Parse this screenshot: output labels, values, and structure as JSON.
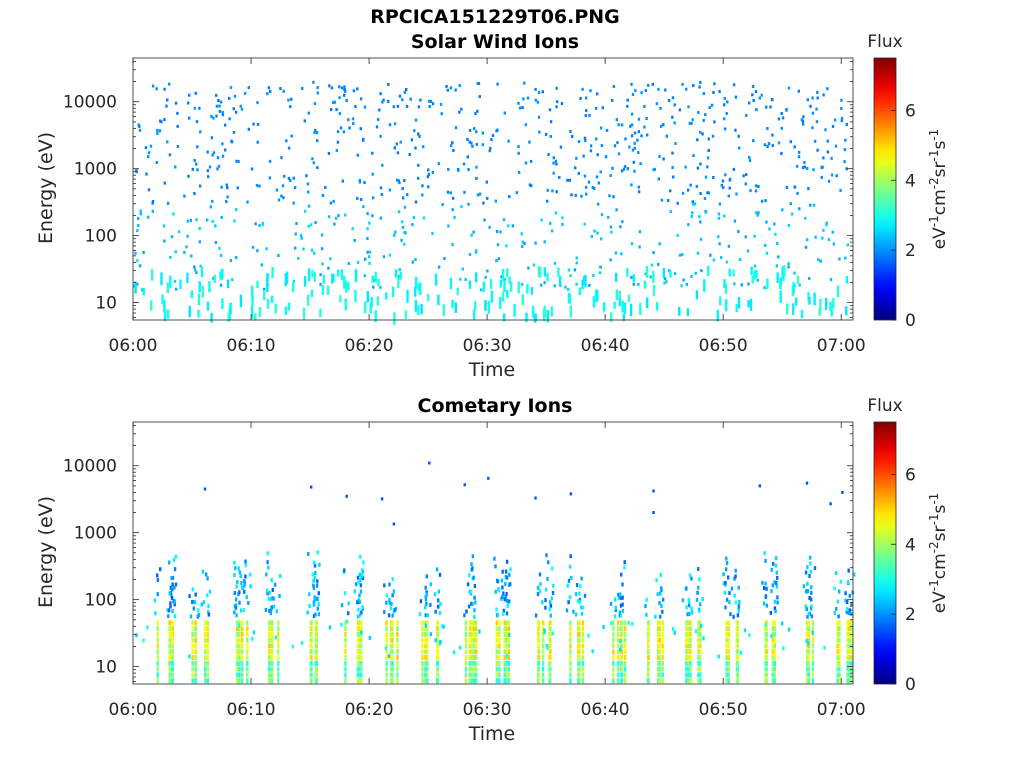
{
  "figure_title": "RPCICA151229T06.PNG",
  "chart_data": [
    {
      "type": "heatmap",
      "title": "Solar Wind Ions",
      "xlabel": "Time",
      "ylabel": "Energy (eV)",
      "x_ticks": [
        "06:00",
        "06:10",
        "06:20",
        "06:30",
        "06:40",
        "06:50",
        "07:00"
      ],
      "xlim": [
        "06:00",
        "07:01"
      ],
      "y_ticks": [
        "10",
        "100",
        "1000",
        "10000"
      ],
      "ylim": [
        5.5,
        45000
      ],
      "y_scale": "log",
      "colorbar": {
        "label": "Flux",
        "unit": "eV-1cm-2sr-1s-1",
        "ticks": [
          "0",
          "2",
          "4",
          "6"
        ],
        "range": [
          0,
          7.5
        ],
        "colormap": "jet"
      },
      "description_values": {
        "scattered_counts_energy_range_eV": [
          15,
          20000
        ],
        "typical_level": 2,
        "low_energy_band_eV": [
          5.5,
          30
        ],
        "low_energy_level": 3
      }
    },
    {
      "type": "heatmap",
      "title": "Cometary Ions",
      "xlabel": "Time",
      "ylabel": "Energy (eV)",
      "x_ticks": [
        "06:00",
        "06:10",
        "06:20",
        "06:30",
        "06:40",
        "06:50",
        "07:00"
      ],
      "xlim": [
        "06:00",
        "07:01"
      ],
      "y_ticks": [
        "10",
        "100",
        "1000",
        "10000"
      ],
      "ylim": [
        5.5,
        45000
      ],
      "y_scale": "log",
      "colorbar": {
        "label": "Flux",
        "unit": "eV-1cm-2sr-1s-1",
        "ticks": [
          "0",
          "2",
          "4",
          "6"
        ],
        "range": [
          0,
          7.5
        ],
        "colormap": "jet"
      },
      "bursts_minutes": [
        2.3,
        5.3,
        8.8,
        11.8,
        15.2,
        18.3,
        21.5,
        24.8,
        28.3,
        31.0,
        34.3,
        37.3,
        40.7,
        43.8,
        47.0,
        50.3,
        53.8,
        57.0,
        59.8
      ],
      "burst_core_energy_eV": [
        10,
        45
      ],
      "burst_core_level": 4.6,
      "isolated_points": [
        {
          "t": "06:06",
          "e": 4500
        },
        {
          "t": "06:15",
          "e": 4800
        },
        {
          "t": "06:18",
          "e": 3500
        },
        {
          "t": "06:21",
          "e": 3200
        },
        {
          "t": "06:22",
          "e": 1350
        },
        {
          "t": "06:25",
          "e": 11000
        },
        {
          "t": "06:28",
          "e": 5200
        },
        {
          "t": "06:30",
          "e": 6500
        },
        {
          "t": "06:34",
          "e": 3300
        },
        {
          "t": "06:37",
          "e": 3800
        },
        {
          "t": "06:44",
          "e": 4200
        },
        {
          "t": "06:44",
          "e": 2000
        },
        {
          "t": "06:53",
          "e": 5000
        },
        {
          "t": "06:57",
          "e": 5500
        },
        {
          "t": "06:59",
          "e": 2700
        },
        {
          "t": "07:00",
          "e": 4000
        }
      ]
    }
  ]
}
